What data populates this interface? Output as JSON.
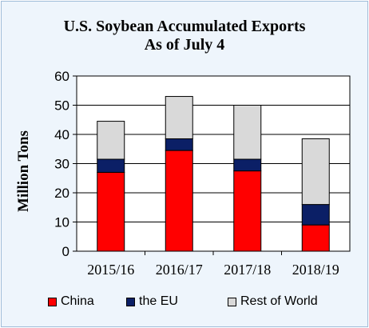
{
  "chart_data": {
    "type": "bar",
    "stacked": true,
    "title": "U.S. Soybean Accumulated Exports",
    "subtitle": "As of July 4",
    "ylabel": "Million Tons",
    "xlabel": "",
    "ylim": [
      0,
      60
    ],
    "yticks": [
      0,
      10,
      20,
      30,
      40,
      50,
      60
    ],
    "grid": true,
    "legend_position": "bottom",
    "categories": [
      "2015/16",
      "2016/17",
      "2017/18",
      "2018/19"
    ],
    "series": [
      {
        "name": "China",
        "color": "#ff0000",
        "values": [
          27.0,
          34.5,
          27.5,
          9.0
        ]
      },
      {
        "name": "the EU",
        "color": "#0b1f66",
        "values": [
          4.5,
          4.0,
          4.0,
          7.0
        ]
      },
      {
        "name": "Rest of World",
        "color": "#d9d9d9",
        "values": [
          13.0,
          14.5,
          18.5,
          22.5
        ]
      }
    ]
  }
}
